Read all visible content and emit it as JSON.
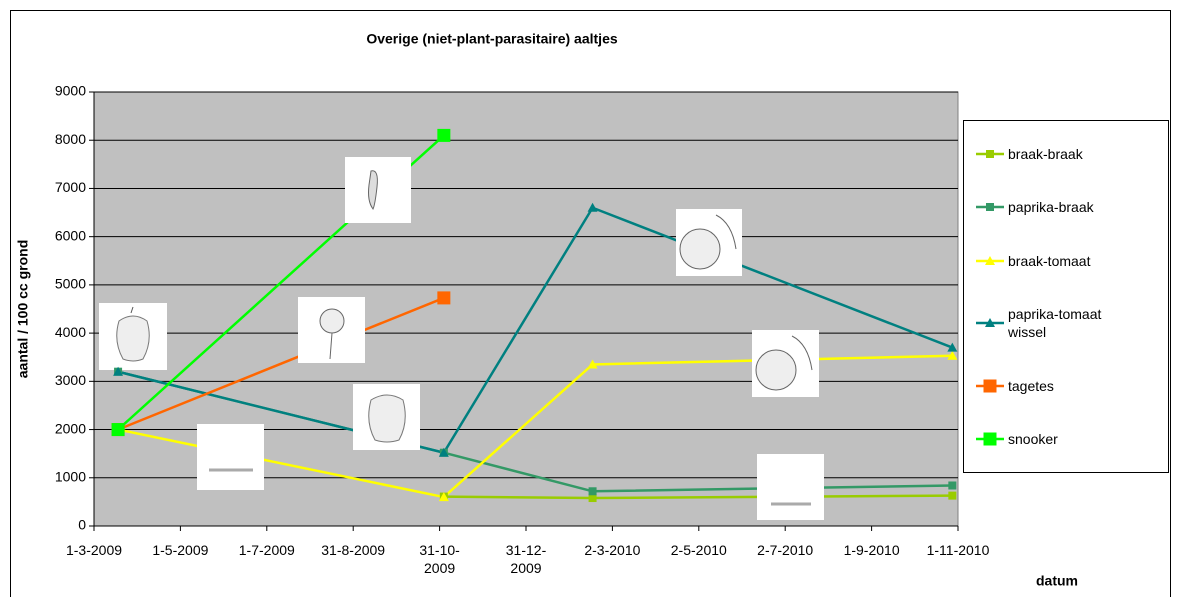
{
  "chart_data": {
    "type": "line",
    "title": "Overige (niet-plant-parasitaire) aaltjes",
    "y_label": "aantal / 100 cc grond",
    "x_label": "datum",
    "xlim": [
      "1-3-2009",
      "1-11-2010"
    ],
    "xticks": [
      "1-3-2009",
      "1-5-2009",
      "1-7-2009",
      "31-8-2009",
      "31-10-2009",
      "31-12-2009",
      "2-3-2010",
      "2-5-2010",
      "2-7-2010",
      "1-9-2010",
      "1-11-2010"
    ],
    "ylim": [
      0,
      9000
    ],
    "yticks": [
      0,
      1000,
      2000,
      3000,
      4000,
      5000,
      6000,
      7000,
      8000,
      9000
    ],
    "grid": true,
    "plot_background": "#c0c0c0",
    "legend": "right",
    "series": [
      {
        "name": "braak-braak",
        "color": "#99cc00",
        "marker": "square",
        "x": [
          "3-11-2009",
          "16-2-2010",
          "28-10-2010"
        ],
        "values": [
          610,
          580,
          630
        ]
      },
      {
        "name": "paprika-braak",
        "color": "#339966",
        "marker": "square",
        "x": [
          "18-3-2009",
          "3-11-2009",
          "16-2-2010",
          "28-10-2010"
        ],
        "values": [
          3200,
          1520,
          720,
          840
        ]
      },
      {
        "name": "braak-tomaat",
        "color": "#ffff00",
        "marker": "triangle",
        "x": [
          "18-3-2009",
          "3-11-2009",
          "16-2-2010",
          "28-10-2010"
        ],
        "values": [
          2000,
          600,
          3350,
          3530
        ]
      },
      {
        "name": "paprika-tomaat wissel",
        "color": "#008080",
        "marker": "triangle",
        "x": [
          "18-3-2009",
          "3-11-2009",
          "16-2-2010",
          "28-10-2010"
        ],
        "values": [
          3200,
          1520,
          6600,
          3700
        ]
      },
      {
        "name": "tagetes",
        "color": "#ff6600",
        "marker": "large-square",
        "x": [
          "18-3-2009",
          "3-11-2009"
        ],
        "values": [
          2000,
          4730
        ]
      },
      {
        "name": "snooker",
        "color": "#00ff00",
        "marker": "large-square",
        "x": [
          "18-3-2009",
          "3-11-2009"
        ],
        "values": [
          2000,
          8100
        ]
      }
    ]
  }
}
